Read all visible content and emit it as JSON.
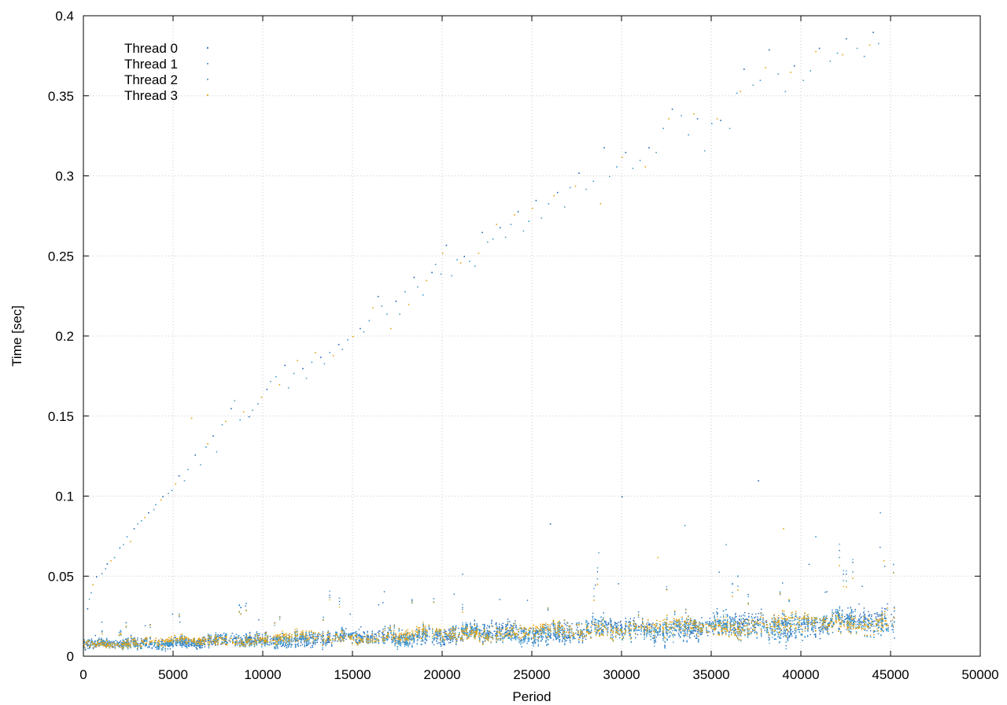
{
  "chart_data": {
    "type": "scatter",
    "xlabel": "Period",
    "ylabel": "Time [sec]",
    "xlim": [
      0,
      50000
    ],
    "ylim": [
      0,
      0.4
    ],
    "xticks": [
      "0",
      "5000",
      "10000",
      "15000",
      "20000",
      "25000",
      "30000",
      "35000",
      "40000",
      "45000",
      "50000"
    ],
    "yticks": [
      "0",
      "0.05",
      "0.1",
      "0.15",
      "0.2",
      "0.25",
      "0.3",
      "0.35",
      "0.4"
    ],
    "grid": true,
    "legend_position": "top-left",
    "colors": {
      "thread0": "#1f66b5",
      "thread1": "#3d9bd6",
      "thread2": "#5aa0b8",
      "thread3": "#e6a311",
      "grid": "#c8c8c8"
    },
    "series": [
      {
        "name": "Thread 0",
        "marker": "dot",
        "bulk": {
          "x_range": [
            0,
            45200
          ],
          "center_start": 0.007,
          "center_end": 0.022,
          "spread_start": 0.004,
          "spread_end": 0.012
        },
        "outliers": [
          [
            200,
            0.03
          ],
          [
            700,
            0.05
          ],
          [
            1300,
            0.058
          ],
          [
            2000,
            0.068
          ],
          [
            2800,
            0.08
          ],
          [
            3600,
            0.09
          ],
          [
            4400,
            0.1
          ],
          [
            5300,
            0.113
          ],
          [
            6200,
            0.126
          ],
          [
            7200,
            0.138
          ],
          [
            8200,
            0.155
          ],
          [
            9200,
            0.15
          ],
          [
            10200,
            0.167
          ],
          [
            11200,
            0.182
          ],
          [
            12200,
            0.18
          ],
          [
            13200,
            0.187
          ],
          [
            14200,
            0.195
          ],
          [
            15400,
            0.205
          ],
          [
            16400,
            0.225
          ],
          [
            17400,
            0.222
          ],
          [
            18400,
            0.237
          ],
          [
            19400,
            0.24
          ],
          [
            20200,
            0.257
          ],
          [
            21200,
            0.25
          ],
          [
            22200,
            0.265
          ],
          [
            23200,
            0.268
          ],
          [
            24200,
            0.278
          ],
          [
            25200,
            0.285
          ],
          [
            26400,
            0.29
          ],
          [
            27600,
            0.302
          ],
          [
            29000,
            0.318
          ],
          [
            30200,
            0.315
          ],
          [
            31500,
            0.318
          ],
          [
            32800,
            0.342
          ],
          [
            34200,
            0.336
          ],
          [
            35500,
            0.335
          ],
          [
            36800,
            0.367
          ],
          [
            38200,
            0.379
          ],
          [
            39600,
            0.369
          ],
          [
            41000,
            0.38
          ],
          [
            42500,
            0.386
          ],
          [
            44000,
            0.39
          ],
          [
            37600,
            0.11
          ],
          [
            30000,
            0.1
          ],
          [
            26000,
            0.083
          ]
        ]
      },
      {
        "name": "Thread 1",
        "marker": "dot",
        "bulk": {
          "x_range": [
            0,
            45200
          ],
          "center_start": 0.0075,
          "center_end": 0.021,
          "spread_start": 0.004,
          "spread_end": 0.013
        },
        "outliers": [
          [
            400,
            0.04
          ],
          [
            1000,
            0.052
          ],
          [
            1700,
            0.062
          ],
          [
            2400,
            0.075
          ],
          [
            3200,
            0.085
          ],
          [
            4000,
            0.095
          ],
          [
            4900,
            0.104
          ],
          [
            5800,
            0.117
          ],
          [
            6800,
            0.131
          ],
          [
            7700,
            0.145
          ],
          [
            8700,
            0.148
          ],
          [
            9700,
            0.158
          ],
          [
            10700,
            0.175
          ],
          [
            11700,
            0.177
          ],
          [
            12700,
            0.184
          ],
          [
            13700,
            0.19
          ],
          [
            14700,
            0.198
          ],
          [
            15900,
            0.21
          ],
          [
            16900,
            0.214
          ],
          [
            17900,
            0.228
          ],
          [
            18900,
            0.226
          ],
          [
            19900,
            0.239
          ],
          [
            20800,
            0.248
          ],
          [
            21800,
            0.244
          ],
          [
            22800,
            0.261
          ],
          [
            23800,
            0.27
          ],
          [
            24800,
            0.272
          ],
          [
            25900,
            0.283
          ],
          [
            27100,
            0.293
          ],
          [
            28400,
            0.297
          ],
          [
            29700,
            0.306
          ],
          [
            31000,
            0.31
          ],
          [
            32300,
            0.33
          ],
          [
            33700,
            0.326
          ],
          [
            35000,
            0.333
          ],
          [
            36400,
            0.352
          ],
          [
            37700,
            0.36
          ],
          [
            39100,
            0.353
          ],
          [
            40500,
            0.366
          ],
          [
            42000,
            0.377
          ],
          [
            43500,
            0.375
          ],
          [
            44400,
            0.09
          ],
          [
            40800,
            0.075
          ],
          [
            33500,
            0.082
          ]
        ]
      },
      {
        "name": "Thread 2",
        "marker": "dot",
        "bulk": {
          "x_range": [
            0,
            45200
          ],
          "center_start": 0.0072,
          "center_end": 0.0215,
          "spread_start": 0.0035,
          "spread_end": 0.011
        },
        "outliers": [
          [
            300,
            0.036
          ],
          [
            1200,
            0.055
          ],
          [
            2200,
            0.07
          ],
          [
            3000,
            0.083
          ],
          [
            3900,
            0.092
          ],
          [
            4700,
            0.102
          ],
          [
            5600,
            0.11
          ],
          [
            6500,
            0.12
          ],
          [
            7400,
            0.128
          ],
          [
            8400,
            0.16
          ],
          [
            9400,
            0.154
          ],
          [
            10400,
            0.172
          ],
          [
            11400,
            0.168
          ],
          [
            12400,
            0.174
          ],
          [
            13400,
            0.183
          ],
          [
            14400,
            0.192
          ],
          [
            15600,
            0.203
          ],
          [
            16600,
            0.219
          ],
          [
            17600,
            0.214
          ],
          [
            18600,
            0.231
          ],
          [
            19600,
            0.245
          ],
          [
            20500,
            0.238
          ],
          [
            21500,
            0.247
          ],
          [
            22500,
            0.259
          ],
          [
            23500,
            0.262
          ],
          [
            24500,
            0.266
          ],
          [
            25500,
            0.274
          ],
          [
            26800,
            0.281
          ],
          [
            28000,
            0.292
          ],
          [
            29300,
            0.3
          ],
          [
            30600,
            0.305
          ],
          [
            31900,
            0.315
          ],
          [
            33300,
            0.338
          ],
          [
            34600,
            0.316
          ],
          [
            36000,
            0.33
          ],
          [
            37300,
            0.357
          ],
          [
            38700,
            0.364
          ],
          [
            40100,
            0.36
          ],
          [
            41600,
            0.372
          ],
          [
            43100,
            0.38
          ],
          [
            44300,
            0.383
          ],
          [
            35800,
            0.07
          ],
          [
            28700,
            0.065
          ]
        ]
      },
      {
        "name": "Thread 3",
        "marker": "dot",
        "bulk": {
          "x_range": [
            0,
            45200
          ],
          "center_start": 0.008,
          "center_end": 0.022,
          "spread_start": 0.0035,
          "spread_end": 0.01
        },
        "outliers": [
          [
            500,
            0.045
          ],
          [
            1500,
            0.06
          ],
          [
            2600,
            0.072
          ],
          [
            3400,
            0.087
          ],
          [
            4300,
            0.098
          ],
          [
            5100,
            0.108
          ],
          [
            6000,
            0.149
          ],
          [
            6900,
            0.133
          ],
          [
            7900,
            0.147
          ],
          [
            8900,
            0.153
          ],
          [
            9900,
            0.162
          ],
          [
            10900,
            0.17
          ],
          [
            11900,
            0.185
          ],
          [
            12900,
            0.19
          ],
          [
            13900,
            0.188
          ],
          [
            15000,
            0.2
          ],
          [
            16100,
            0.218
          ],
          [
            17100,
            0.205
          ],
          [
            18100,
            0.22
          ],
          [
            19100,
            0.235
          ],
          [
            20000,
            0.252
          ],
          [
            21000,
            0.246
          ],
          [
            22000,
            0.252
          ],
          [
            23000,
            0.27
          ],
          [
            24000,
            0.276
          ],
          [
            25000,
            0.28
          ],
          [
            26200,
            0.288
          ],
          [
            27400,
            0.294
          ],
          [
            28800,
            0.283
          ],
          [
            30000,
            0.312
          ],
          [
            31300,
            0.306
          ],
          [
            32600,
            0.336
          ],
          [
            34000,
            0.339
          ],
          [
            35300,
            0.336
          ],
          [
            36600,
            0.353
          ],
          [
            38000,
            0.368
          ],
          [
            39400,
            0.365
          ],
          [
            40800,
            0.378
          ],
          [
            42300,
            0.376
          ],
          [
            43800,
            0.382
          ],
          [
            44600,
            0.06
          ],
          [
            39000,
            0.08
          ],
          [
            32000,
            0.062
          ]
        ]
      }
    ]
  }
}
